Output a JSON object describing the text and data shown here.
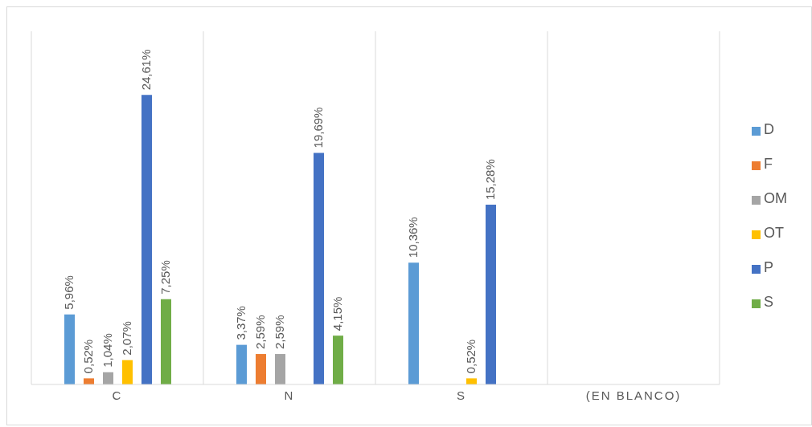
{
  "chart_data": {
    "type": "bar",
    "categories": [
      "C",
      "N",
      "S",
      "(EN BLANCO)"
    ],
    "series": [
      {
        "name": "D",
        "color": "#5b9bd5",
        "values": [
          5.96,
          3.37,
          10.36,
          null
        ],
        "value_labels": [
          "5,96%",
          "3,37%",
          "10,36%",
          null
        ]
      },
      {
        "name": "F",
        "color": "#ed7d31",
        "values": [
          0.52,
          2.59,
          null,
          null
        ],
        "value_labels": [
          "0,52%",
          "2,59%",
          null,
          null
        ]
      },
      {
        "name": "OM",
        "color": "#a5a5a5",
        "values": [
          1.04,
          2.59,
          null,
          null
        ],
        "value_labels": [
          "1,04%",
          "2,59%",
          null,
          null
        ]
      },
      {
        "name": "OT",
        "color": "#ffc000",
        "values": [
          2.07,
          null,
          0.52,
          null
        ],
        "value_labels": [
          "2,07%",
          null,
          "0,52%",
          null
        ]
      },
      {
        "name": "P",
        "color": "#4472c4",
        "values": [
          24.61,
          19.69,
          15.28,
          null
        ],
        "value_labels": [
          "24,61%",
          "19,69%",
          "15,28%",
          null
        ]
      },
      {
        "name": "S",
        "color": "#70ad47",
        "values": [
          7.25,
          4.15,
          null,
          null
        ],
        "value_labels": [
          "7,25%",
          "4,15%",
          null,
          null
        ]
      }
    ],
    "grid": "x",
    "legend": "right"
  }
}
